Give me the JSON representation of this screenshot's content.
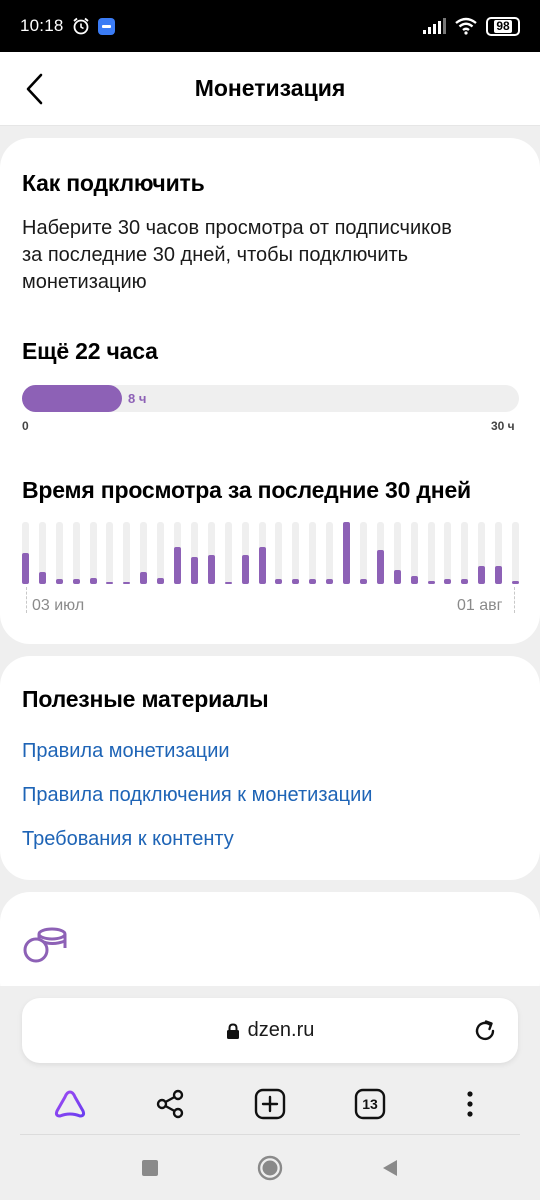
{
  "status_bar": {
    "time": "10:18",
    "battery": "98"
  },
  "header": {
    "title": "Монетизация"
  },
  "connect": {
    "title": "Как подключить",
    "description_lines": [
      "Наберите 30 часов просмотра от подписчиков",
      "за последние 30 дней, чтобы подключить",
      "монетизацию"
    ],
    "remaining": "Ещё 22 часа",
    "progress": {
      "current_label": "8 ч",
      "min_label": "0",
      "max_label": "30 ч",
      "current": 8,
      "max": 30
    }
  },
  "watch_time": {
    "title": "Время просмотра за последние 30 дней",
    "x_labels": [
      "03 июл",
      "01 авг"
    ],
    "chart_data": {
      "type": "bar",
      "categories": [
        "03 июл",
        "",
        "",
        "",
        "",
        "",
        "",
        "",
        "",
        "",
        "",
        "",
        "",
        "",
        "",
        "",
        "",
        "",
        "",
        "",
        "",
        "",
        "",
        "",
        "",
        "",
        "",
        "",
        "",
        "01 авг"
      ],
      "values": [
        30,
        12,
        5,
        5,
        6,
        2,
        2,
        12,
        6,
        36,
        26,
        28,
        2,
        28,
        36,
        5,
        5,
        5,
        5,
        60,
        5,
        33,
        14,
        8,
        3,
        5,
        5,
        17,
        17,
        3
      ],
      "ylim": [
        0,
        60
      ],
      "color": "#8d61b6"
    }
  },
  "materials": {
    "title": "Полезные материалы",
    "links": [
      "Правила монетизации",
      "Правила подключения к монетизации",
      "Требования к контенту"
    ]
  },
  "browser": {
    "url": "dzen.ru",
    "tabs_count": "13"
  },
  "colors": {
    "accent": "#8d61b6",
    "link": "#1e64b6"
  }
}
